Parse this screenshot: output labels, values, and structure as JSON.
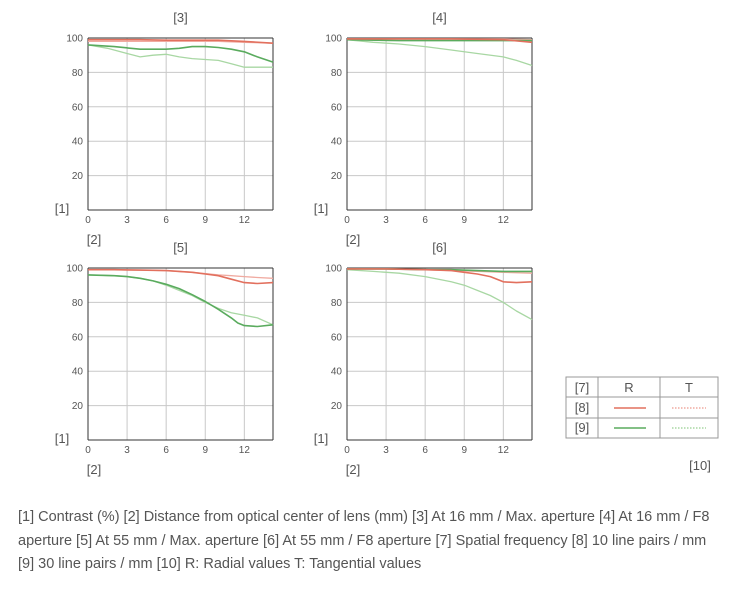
{
  "labels": {
    "y_axis": "[1]",
    "x_axis": "[2]",
    "legend_row_head": "[7]",
    "legend_row_10": "[8]",
    "legend_row_30": "[9]",
    "legend_col_r": "R",
    "legend_col_t": "T",
    "legend_note": "[10]"
  },
  "caption": {
    "text": "[1] Contrast (%)  [2] Distance from optical center of lens (mm)  [3] At 16 mm / Max. aperture  [4] At 16 mm / F8 aperture  [5] At 55 mm / Max. aperture  [6] At 55 mm / F8 aperture  [7] Spatial frequency  [8] 10 line pairs / mm  [9]  30 line pairs / mm [10] R: Radial values  T: Tangential values"
  },
  "colors": {
    "radial_10": "#e2705e",
    "tangential_10": "#f0aaa0",
    "radial_30": "#5aab5e",
    "tangential_30": "#a8d7a3",
    "grid": "#c8c8c8",
    "frame": "#333333"
  },
  "chart_data": [
    {
      "type": "line",
      "title": "[3]",
      "xlim": [
        0,
        14.2
      ],
      "ylim": [
        0,
        100
      ],
      "xticks": [
        0,
        3,
        6,
        9,
        12
      ],
      "yticks": [
        20,
        40,
        60,
        80,
        100
      ],
      "series": [
        {
          "name": "10 R",
          "x": [
            0,
            2,
            4,
            6,
            8,
            10,
            12,
            14.2
          ],
          "values": [
            99,
            99,
            99,
            98.7,
            98.7,
            98.7,
            98,
            97
          ]
        },
        {
          "name": "10 T",
          "x": [
            0,
            2,
            4,
            6,
            8,
            10,
            12,
            14.2
          ],
          "values": [
            98,
            98,
            98,
            98,
            98,
            98,
            97.5,
            97
          ]
        },
        {
          "name": "30 R",
          "x": [
            0,
            2,
            4,
            6,
            7,
            8,
            9,
            10,
            11,
            12,
            13,
            14.2
          ],
          "values": [
            96,
            95,
            93.5,
            93.5,
            94,
            95,
            95,
            94.5,
            93.5,
            92,
            89,
            86
          ]
        },
        {
          "name": "30 T",
          "x": [
            0,
            1.5,
            3,
            4,
            5,
            6,
            7,
            8,
            9,
            10,
            11,
            12,
            13,
            14.2
          ],
          "values": [
            96,
            94,
            91,
            89,
            90,
            90.5,
            89,
            88,
            87.5,
            87,
            85,
            83,
            83,
            83
          ]
        }
      ]
    },
    {
      "type": "line",
      "title": "[4]",
      "xlim": [
        0,
        14.2
      ],
      "ylim": [
        0,
        100
      ],
      "xticks": [
        0,
        3,
        6,
        9,
        12
      ],
      "yticks": [
        20,
        40,
        60,
        80,
        100
      ],
      "series": [
        {
          "name": "10 R",
          "x": [
            0,
            4,
            8,
            12,
            14.2
          ],
          "values": [
            99.5,
            99.5,
            99.5,
            99,
            97.5
          ]
        },
        {
          "name": "10 T",
          "x": [
            0,
            4,
            8,
            12,
            14.2
          ],
          "values": [
            99.5,
            99.5,
            99.5,
            99.5,
            99
          ]
        },
        {
          "name": "30 R",
          "x": [
            0,
            4,
            8,
            12,
            14.2
          ],
          "values": [
            99,
            98.5,
            98.5,
            98.5,
            98.5
          ]
        },
        {
          "name": "30 T",
          "x": [
            0,
            2,
            4,
            6,
            8,
            10,
            12,
            13,
            14.2
          ],
          "values": [
            99,
            97.5,
            96.5,
            95,
            93,
            91,
            89,
            87,
            84
          ]
        }
      ]
    },
    {
      "type": "line",
      "title": "[5]",
      "xlim": [
        0,
        14.2
      ],
      "ylim": [
        0,
        100
      ],
      "xticks": [
        0,
        3,
        6,
        9,
        12
      ],
      "yticks": [
        20,
        40,
        60,
        80,
        100
      ],
      "series": [
        {
          "name": "10 R",
          "x": [
            0,
            2,
            4,
            6,
            8,
            9,
            10,
            11,
            12,
            13,
            14.2
          ],
          "values": [
            99,
            99,
            98.8,
            98.5,
            97.5,
            96.5,
            95.5,
            93.5,
            91.5,
            91,
            91.5
          ]
        },
        {
          "name": "10 T",
          "x": [
            0,
            2,
            4,
            6,
            8,
            10,
            11,
            12,
            13,
            14.2
          ],
          "values": [
            99,
            99,
            98.8,
            98.5,
            97.5,
            96,
            95.5,
            95,
            94.5,
            94
          ]
        },
        {
          "name": "30 R",
          "x": [
            0,
            2,
            3,
            4,
            5,
            6,
            7,
            8,
            9,
            10,
            11,
            11.5,
            12,
            13,
            14.2
          ],
          "values": [
            96,
            95.5,
            95,
            94,
            92.5,
            90.5,
            88,
            84.5,
            80.5,
            76,
            71,
            68,
            66.5,
            66,
            67
          ]
        },
        {
          "name": "30 T",
          "x": [
            0,
            2,
            3,
            4,
            5,
            6,
            7,
            8,
            9,
            10,
            11,
            12,
            13,
            14.2
          ],
          "values": [
            96,
            95.5,
            95,
            94,
            92.5,
            90,
            87,
            84,
            80,
            76.5,
            74,
            72.5,
            71,
            67
          ]
        }
      ]
    },
    {
      "type": "line",
      "title": "[6]",
      "xlim": [
        0,
        14.2
      ],
      "ylim": [
        0,
        100
      ],
      "xticks": [
        0,
        3,
        6,
        9,
        12
      ],
      "yticks": [
        20,
        40,
        60,
        80,
        100
      ],
      "series": [
        {
          "name": "10 R",
          "x": [
            0,
            3,
            6,
            8,
            9,
            10,
            11,
            12,
            13,
            14.2
          ],
          "values": [
            99.5,
            99.5,
            99,
            98.5,
            97.5,
            96.5,
            95,
            92,
            91.5,
            92
          ]
        },
        {
          "name": "10 T",
          "x": [
            0,
            3,
            6,
            8,
            10,
            12,
            14.2
          ],
          "values": [
            99.5,
            99.5,
            99,
            98.5,
            98,
            97.5,
            97
          ]
        },
        {
          "name": "30 R",
          "x": [
            0,
            3,
            6,
            8,
            10,
            12,
            14.2
          ],
          "values": [
            99.5,
            99.5,
            99,
            99,
            98.5,
            98,
            98
          ]
        },
        {
          "name": "30 T",
          "x": [
            0,
            2,
            4,
            6,
            8,
            9,
            10,
            11,
            12,
            13,
            14.2
          ],
          "values": [
            99,
            98,
            97,
            95,
            92,
            90,
            87,
            84,
            80,
            75,
            70
          ]
        }
      ]
    }
  ]
}
